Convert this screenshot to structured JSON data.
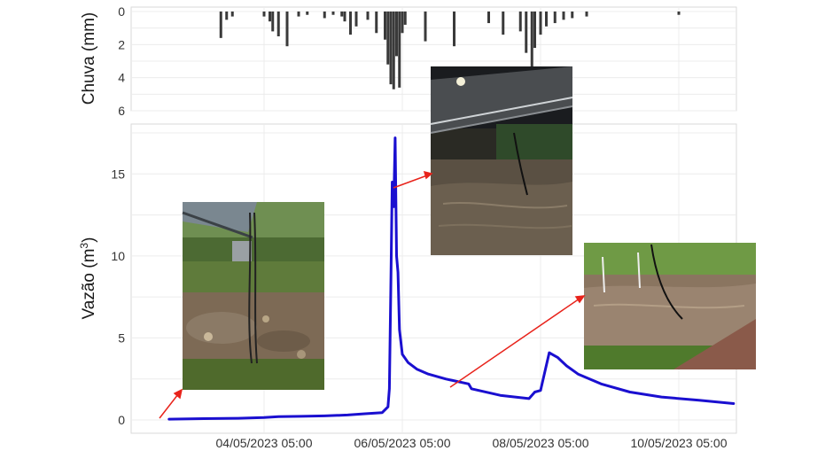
{
  "chart_data": [
    {
      "type": "bar",
      "ylabel": "Chuva (mm)",
      "ylim": [
        0,
        6
      ],
      "y_reversed": true,
      "y_ticks": [
        "0",
        "2",
        "4",
        "6"
      ],
      "grid": true,
      "x": [
        "03/05/2023 14:00",
        "03/05/2023 16:00",
        "03/05/2023 18:00",
        "04/05/2023 05:00",
        "04/05/2023 07:00",
        "04/05/2023 08:00",
        "04/05/2023 10:00",
        "04/05/2023 13:00",
        "04/05/2023 17:00",
        "04/05/2023 20:00",
        "05/05/2023 02:00",
        "05/05/2023 05:00",
        "05/05/2023 08:00",
        "05/05/2023 09:00",
        "05/05/2023 11:00",
        "05/05/2023 13:00",
        "05/05/2023 17:00",
        "05/05/2023 20:00",
        "05/05/2023 23:00",
        "06/05/2023 00:00",
        "06/05/2023 01:00",
        "06/05/2023 02:00",
        "06/05/2023 03:00",
        "06/05/2023 04:00",
        "06/05/2023 05:00",
        "06/05/2023 06:00",
        "06/05/2023 13:00",
        "06/05/2023 23:00",
        "07/05/2023 11:00",
        "07/05/2023 16:00",
        "07/05/2023 22:00",
        "08/05/2023 00:00",
        "08/05/2023 02:00",
        "08/05/2023 03:00",
        "08/05/2023 05:00",
        "08/05/2023 07:00",
        "08/05/2023 10:00",
        "08/05/2023 13:00",
        "08/05/2023 16:00",
        "08/05/2023 21:00",
        "10/05/2023 05:00"
      ],
      "values": [
        1.6,
        0.5,
        0.3,
        0.3,
        0.6,
        1.2,
        1.5,
        2.1,
        0.3,
        0.2,
        0.4,
        0.2,
        0.3,
        0.6,
        1.4,
        0.9,
        0.5,
        1.3,
        1.7,
        3.2,
        4.4,
        4.7,
        2.7,
        4.6,
        1.3,
        0.8,
        1.8,
        2.1,
        0.7,
        1.4,
        1.2,
        2.5,
        3.5,
        2.2,
        1.4,
        0.9,
        0.7,
        0.5,
        0.4,
        0.3,
        0.2
      ]
    },
    {
      "type": "line",
      "ylabel_main": "Vazão (m",
      "ylabel_sup": "3",
      "ylabel_close": ")",
      "ylim": [
        0,
        17.5
      ],
      "y_ticks": [
        "0",
        "5",
        "10",
        "15"
      ],
      "x_ticks": [
        "04/05/2023 05:00",
        "06/05/2023 05:00",
        "08/05/2023 05:00",
        "10/05/2023 05:00"
      ],
      "grid": true,
      "color": "#1a0fd0",
      "series": [
        {
          "x": [
            "02/05/2023 20:00",
            "03/05/2023 08:00",
            "03/05/2023 20:00",
            "04/05/2023 05:00",
            "04/05/2023 10:00",
            "04/05/2023 18:00",
            "05/05/2023 02:00",
            "05/05/2023 10:00",
            "05/05/2023 16:00",
            "05/05/2023 22:00",
            "06/05/2023 00:00",
            "06/05/2023 00:30",
            "06/05/2023 01:00",
            "06/05/2023 01:30",
            "06/05/2023 02:00",
            "06/05/2023 02:30",
            "06/05/2023 03:00",
            "06/05/2023 03:30",
            "06/05/2023 04:00",
            "06/05/2023 05:00",
            "06/05/2023 07:00",
            "06/05/2023 10:00",
            "06/05/2023 14:00",
            "06/05/2023 20:00",
            "07/05/2023 04:00",
            "07/05/2023 05:00",
            "07/05/2023 15:00",
            "08/05/2023 01:00",
            "08/05/2023 03:00",
            "08/05/2023 05:00",
            "08/05/2023 08:00",
            "08/05/2023 09:00",
            "08/05/2023 11:00",
            "08/05/2023 14:00",
            "08/05/2023 18:00",
            "09/05/2023 02:00",
            "09/05/2023 12:00",
            "09/05/2023 23:00",
            "10/05/2023 12:00",
            "11/05/2023 00:00"
          ],
          "values": [
            0.05,
            0.08,
            0.1,
            0.15,
            0.2,
            0.22,
            0.25,
            0.3,
            0.38,
            0.45,
            0.8,
            1.9,
            8.0,
            14.5,
            13.0,
            17.2,
            10.0,
            9.0,
            5.5,
            4.0,
            3.5,
            3.1,
            2.8,
            2.5,
            2.2,
            1.9,
            1.5,
            1.3,
            1.7,
            1.8,
            4.1,
            4.0,
            3.8,
            3.3,
            2.8,
            2.2,
            1.7,
            1.4,
            1.2,
            1.0
          ]
        }
      ]
    }
  ]
}
